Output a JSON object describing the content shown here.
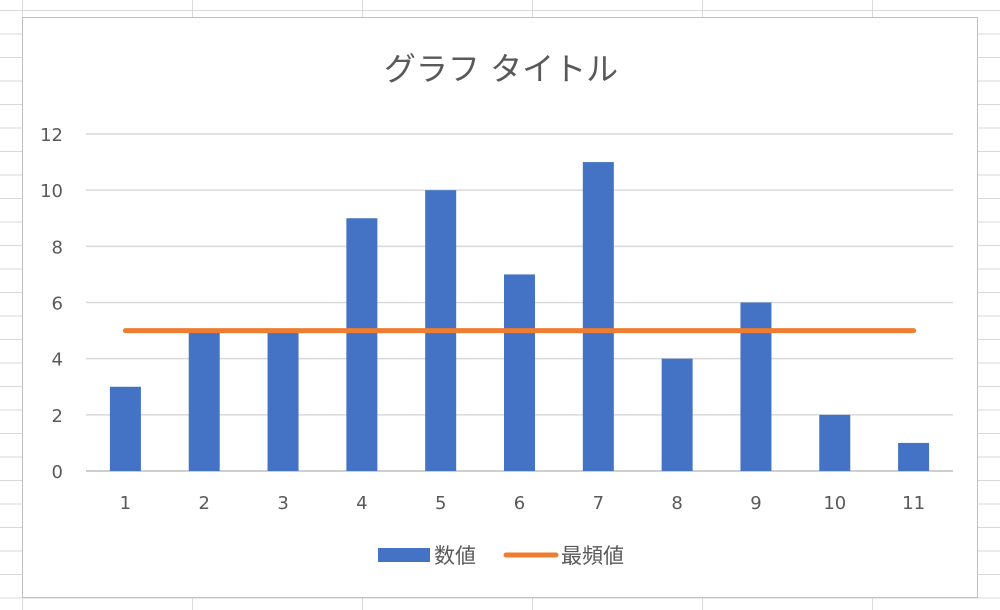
{
  "chart_data": {
    "type": "bar",
    "title": "グラフ タイトル",
    "categories": [
      "1",
      "2",
      "3",
      "4",
      "5",
      "6",
      "7",
      "8",
      "9",
      "10",
      "11"
    ],
    "series": [
      {
        "name": "数値",
        "type": "bar",
        "color": "#4472c4",
        "values": [
          3,
          5,
          5,
          9,
          10,
          7,
          11,
          4,
          6,
          2,
          1
        ]
      },
      {
        "name": "最頻値",
        "type": "line",
        "color": "#ed7d31",
        "values": [
          5,
          5,
          5,
          5,
          5,
          5,
          5,
          5,
          5,
          5,
          5
        ]
      }
    ],
    "ylim": [
      0,
      12
    ],
    "yticks": [
      0,
      2,
      4,
      6,
      8,
      10,
      12
    ],
    "grid": true,
    "legend_position": "bottom"
  }
}
